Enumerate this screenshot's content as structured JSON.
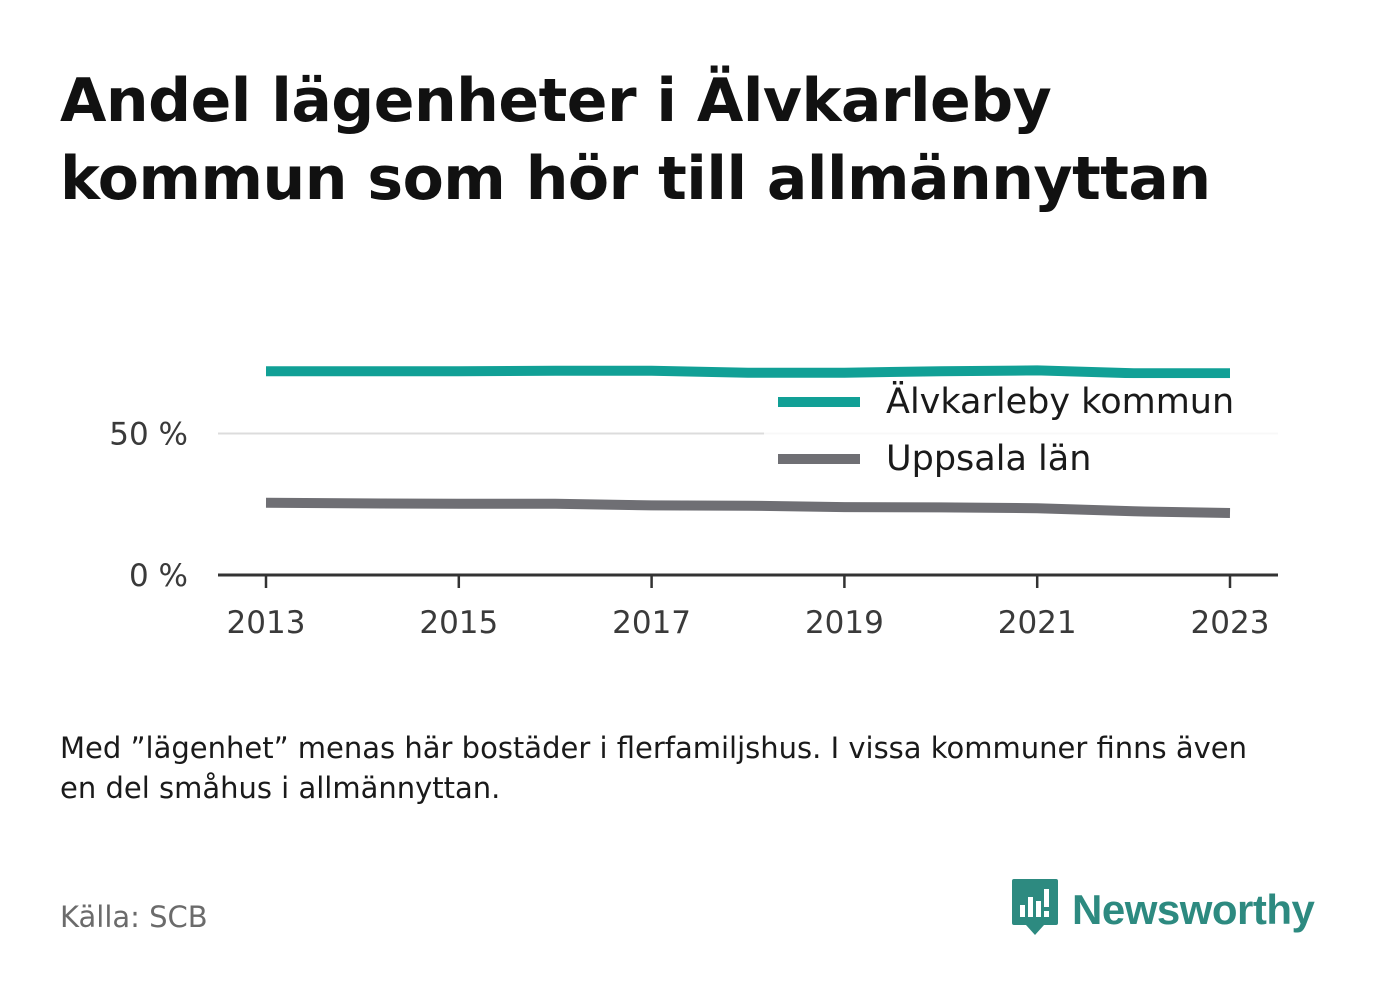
{
  "title": "Andel lägenheter i Älvkarleby kommun som hör till allmännyttan",
  "note": "Med ”lägenhet” menas här bostäder i flerfamiljshus. I vissa kommuner finns även en del småhus i allmännyttan.",
  "source": "Källa: SCB",
  "brand": {
    "name": "Newsworthy",
    "icon": "newsworthy-logo-icon",
    "color": "#2d8a80"
  },
  "chart_data": {
    "type": "line",
    "x": [
      2013,
      2014,
      2015,
      2016,
      2017,
      2018,
      2019,
      2020,
      2021,
      2022,
      2023
    ],
    "series": [
      {
        "name": "Älvkarleby kommun",
        "color": "#11a096",
        "values": [
          72,
          72,
          72,
          72.2,
          72.2,
          71.5,
          71.5,
          72,
          72.3,
          71.3,
          71.3
        ]
      },
      {
        "name": "Uppsala län",
        "color": "#6f6f74",
        "values": [
          25.5,
          25.3,
          25.2,
          25.2,
          24.6,
          24.5,
          24.0,
          23.9,
          23.6,
          22.5,
          21.9
        ]
      }
    ],
    "y_ticks": [
      {
        "value": 0,
        "label": "0 %"
      },
      {
        "value": 50,
        "label": "50 %"
      }
    ],
    "x_ticks": [
      "2013",
      "2015",
      "2017",
      "2019",
      "2021",
      "2023"
    ],
    "ylim": [
      0,
      100
    ],
    "grid": true,
    "legend_position": "top-right"
  }
}
